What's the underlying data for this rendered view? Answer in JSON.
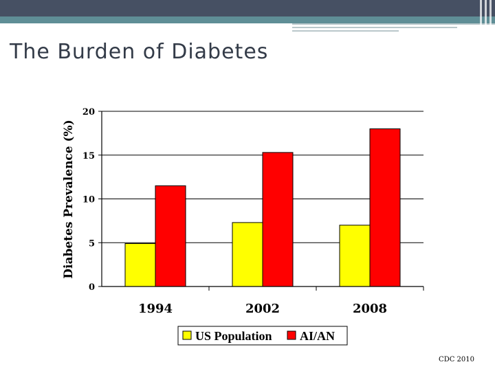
{
  "slide": {
    "title": "The Burden of Diabetes",
    "source": "CDC 2010"
  },
  "chart_data": {
    "type": "bar",
    "ylabel": "Diabetes Prevalence (%)",
    "categories": [
      "1994",
      "2002",
      "2008"
    ],
    "ylim": [
      0,
      20
    ],
    "yticks": [
      0,
      5,
      10,
      15,
      20
    ],
    "grid": true,
    "legend_position": "bottom",
    "series": [
      {
        "name": "US Population",
        "values": [
          4.9,
          7.3,
          7.0
        ],
        "color": "#ffff00"
      },
      {
        "name": "AI/AN",
        "values": [
          11.5,
          15.3,
          18.0
        ],
        "color": "#ff0000"
      }
    ]
  }
}
